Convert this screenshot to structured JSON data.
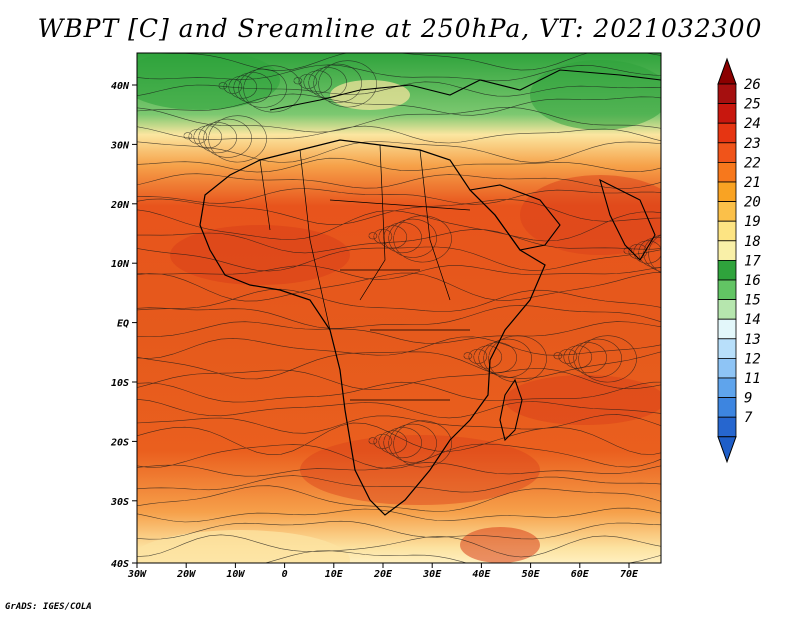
{
  "title": "WBPT [C] and Sreamline at 250hPa, VT: 2021032300",
  "credit": "GrADS: IGES/COLA",
  "map": {
    "lon_ticks": [
      "30W",
      "20W",
      "10W",
      "0",
      "10E",
      "20E",
      "30E",
      "40E",
      "50E",
      "60E",
      "70E"
    ],
    "lat_ticks": [
      "40N",
      "30N",
      "20N",
      "10N",
      "EQ",
      "10S",
      "20S",
      "30S",
      "40S"
    ]
  },
  "colorbar": {
    "levels": [
      "26",
      "25",
      "24",
      "23",
      "22",
      "21",
      "20",
      "19",
      "18",
      "17",
      "16",
      "15",
      "14",
      "13",
      "12",
      "11",
      "9",
      "7"
    ],
    "colors": [
      "#a50f0f",
      "#c8170e",
      "#e63512",
      "#f0541a",
      "#f7781c",
      "#f9a323",
      "#fbc049",
      "#fde483",
      "#f9f0a8",
      "#2fa33c",
      "#62c464",
      "#b6e6ae",
      "#e3f7fa",
      "#b8dffa",
      "#8ec4f5",
      "#5fa4ec",
      "#3d85e0",
      "#2666cf"
    ],
    "top_arrow_color": "#8b0000",
    "bottom_arrow_color": "#1e5ec8"
  }
}
